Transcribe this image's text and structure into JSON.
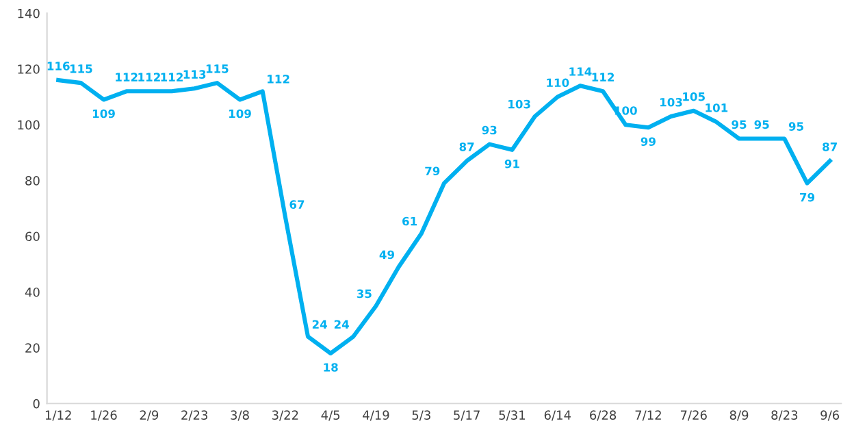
{
  "chart_data": {
    "type": "line",
    "categories": [
      "1/12",
      null,
      "1/26",
      null,
      "2/9",
      null,
      "2/23",
      null,
      "3/8",
      null,
      "3/22",
      null,
      "4/5",
      null,
      "4/19",
      null,
      "5/3",
      null,
      "5/17",
      null,
      "5/31",
      null,
      "6/14",
      null,
      "6/28",
      null,
      "7/12",
      null,
      "7/26",
      null,
      "8/9",
      null,
      "8/23",
      null,
      "9/6"
    ],
    "series": [
      {
        "color": "#00b0f0",
        "values": [
          116,
          115,
          109,
          112,
          112,
          112,
          113,
          115,
          109,
          112,
          67,
          24,
          18,
          24,
          35,
          49,
          61,
          79,
          87,
          93,
          91,
          103,
          110,
          114,
          112,
          100,
          99,
          103,
          105,
          101,
          95,
          95,
          95,
          79,
          87
        ]
      }
    ],
    "ylim": [
      0,
      140
    ],
    "yticks": [
      0,
      20,
      40,
      60,
      80,
      100,
      120,
      140
    ],
    "data_labels": true,
    "grid": false,
    "marker": "none",
    "line_style": "solid",
    "legend": false
  }
}
